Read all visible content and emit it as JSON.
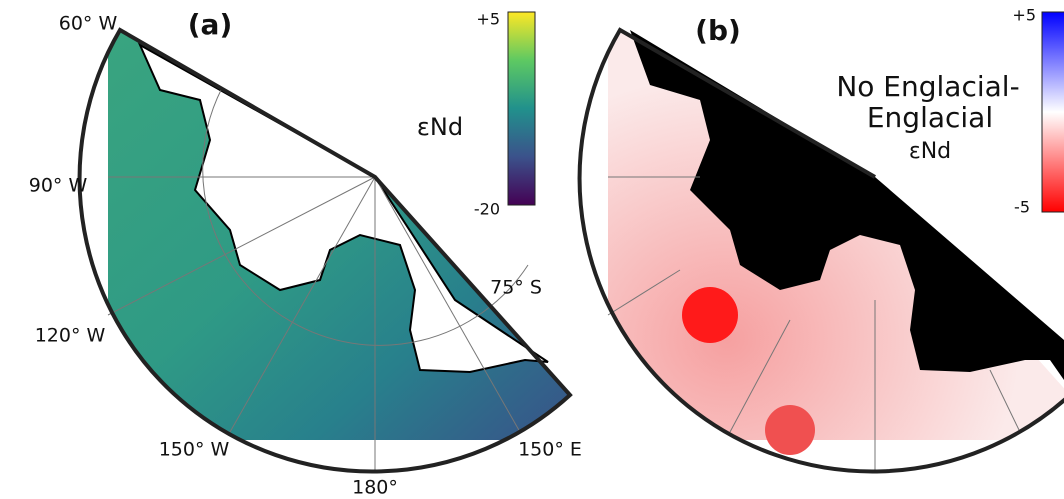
{
  "panels": [
    {
      "label": "(a)",
      "colorbar": {
        "top": "+5",
        "bottom": "-20",
        "title": "εNd"
      },
      "meridians": [
        "60° W",
        "90° W",
        "120° W",
        "150° W",
        "180°",
        "150° E"
      ],
      "parallel": "75° S"
    },
    {
      "label": "(b)",
      "colorbar": {
        "top": "+5",
        "bottom": "-5",
        "title_lines": [
          "No Englacial-",
          "Englacial",
          "εNd"
        ]
      }
    }
  ]
}
